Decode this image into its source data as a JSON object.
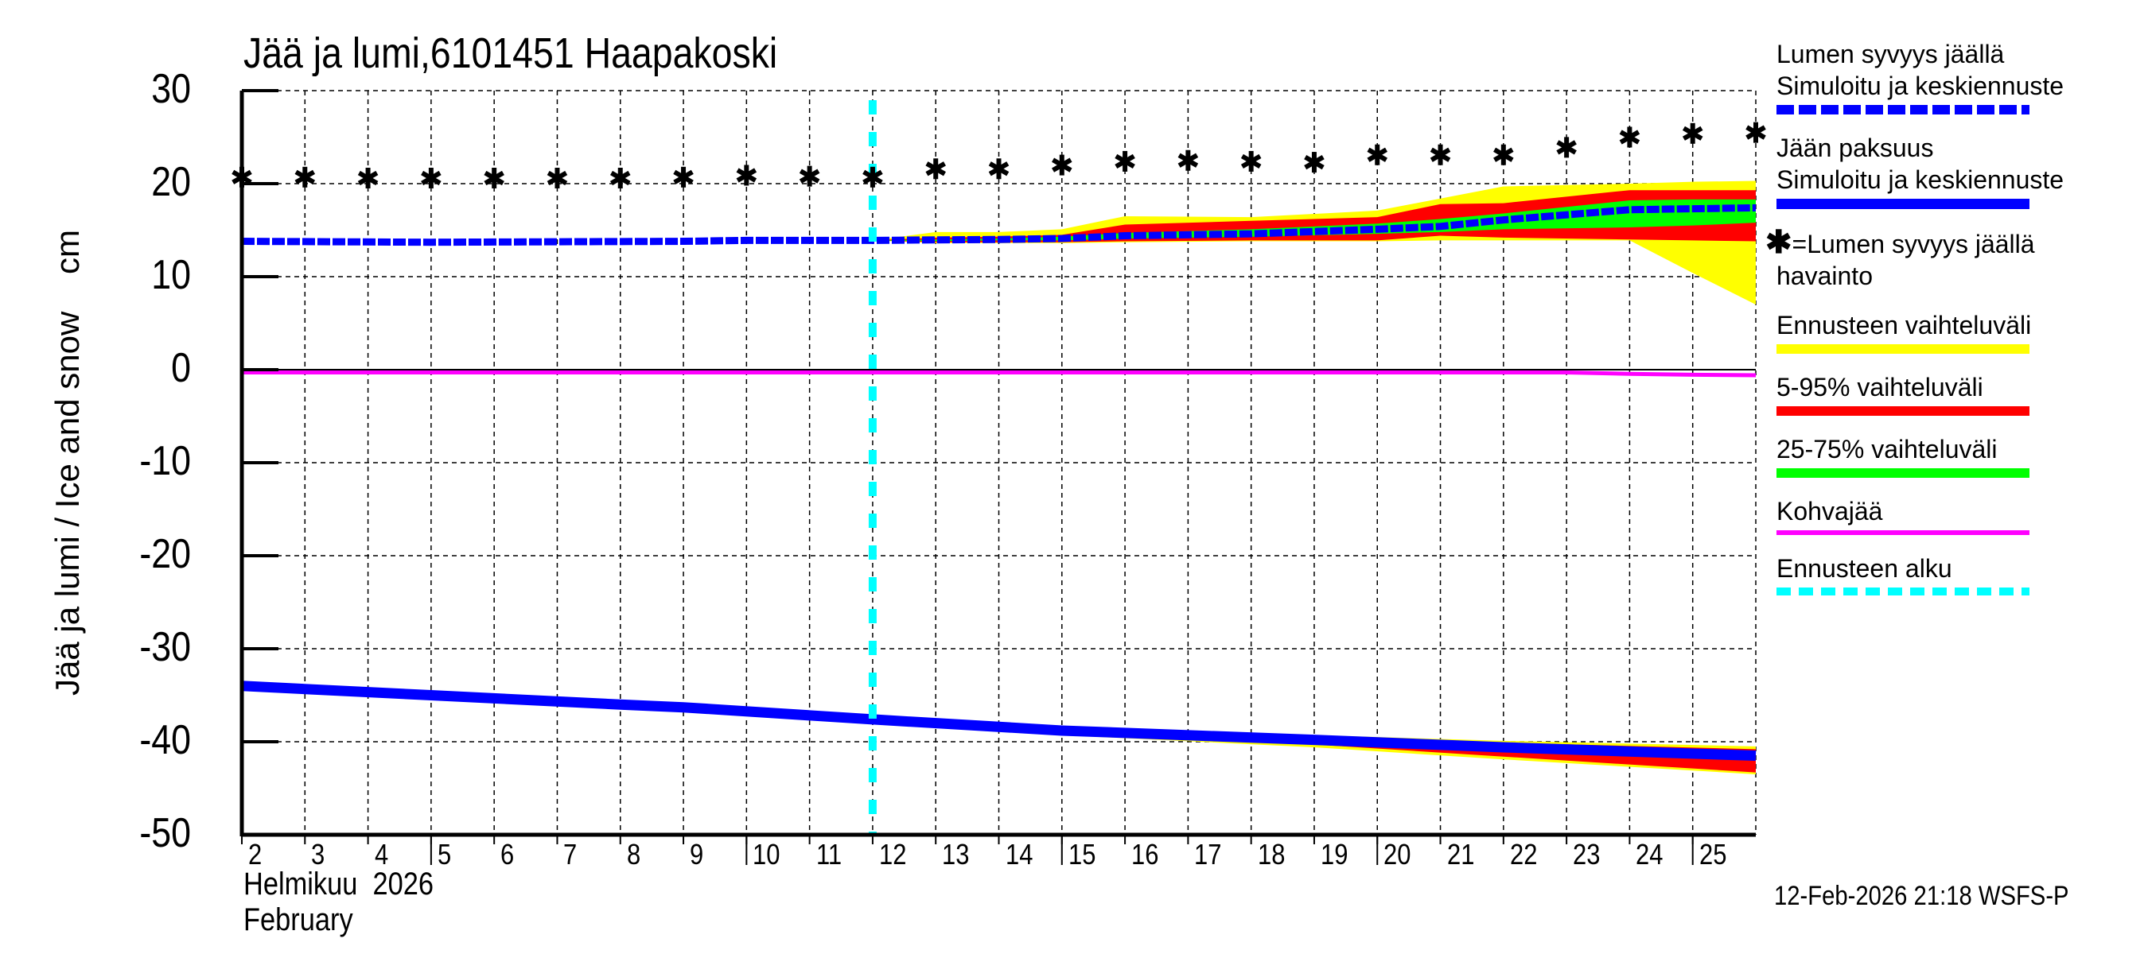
{
  "title": "Jää ja lumi,6101451 Haapakoski",
  "y_axis_label": "Jää ja lumi / Ice and snow    cm",
  "x_axis": {
    "month_fi": "Helmikuu  2026",
    "month_en": "February"
  },
  "footer": "12-Feb-2026 21:18 WSFS-P",
  "legend": {
    "snow_sim_title": "Lumen syvyys jäällä",
    "snow_sim_sub": "Simuloitu ja keskiennuste",
    "ice_title": "Jään paksuus",
    "ice_sub": "Simuloitu ja keskiennuste",
    "snow_obs_title": "=Lumen syvyys jäällä",
    "snow_obs_sub": "havainto",
    "range_all": "Ennusteen vaihteluväli",
    "range_5_95": "5-95% vaihteluväli",
    "range_25_75": "25-75% vaihteluväli",
    "slush_ice": "Kohvajää",
    "forecast_start": "Ennusteen alku"
  },
  "colors": {
    "snow_line": "#0000ff",
    "ice_line": "#0000ff",
    "range_all": "#ffff00",
    "range_5_95": "#ff0000",
    "range_25_75": "#00ff00",
    "slush_ice": "#ff00ff",
    "forecast_start": "#00ffff",
    "observation": "#000000"
  },
  "chart_data": {
    "type": "line",
    "title": "Jää ja lumi,6101451 Haapakoski",
    "xlabel": "Helmikuu 2026 / February",
    "ylabel": "Jää ja lumi / Ice and snow cm",
    "ylim": [
      -50,
      30
    ],
    "xlim": [
      2,
      26
    ],
    "yticks": [
      30,
      20,
      10,
      0,
      -10,
      -20,
      -30,
      -40,
      -50
    ],
    "xticks": [
      2,
      3,
      4,
      5,
      6,
      7,
      8,
      9,
      10,
      11,
      12,
      13,
      14,
      15,
      16,
      17,
      18,
      19,
      20,
      21,
      22,
      23,
      24,
      25
    ],
    "grid": true,
    "legend_position": "right",
    "forecast_start_day": 12,
    "snow_observed": {
      "name": "Lumen syvyys jäällä havainto",
      "x": [
        2,
        3,
        4,
        5,
        6,
        7,
        8,
        9,
        10,
        11,
        12,
        13,
        14,
        15,
        16,
        17,
        18,
        19,
        20,
        21,
        22,
        23,
        24,
        25,
        26
      ],
      "y": [
        20.7,
        20.7,
        20.6,
        20.6,
        20.6,
        20.6,
        20.6,
        20.7,
        20.9,
        20.8,
        20.7,
        21.6,
        21.6,
        22.0,
        22.4,
        22.5,
        22.4,
        22.3,
        23.1,
        23.1,
        23.1,
        23.9,
        25.0,
        25.4,
        25.5
      ]
    },
    "snow_simulated": {
      "name": "Lumen syvyys jäällä simuloitu ja keskiennuste",
      "x": [
        2,
        5,
        9,
        10,
        12,
        14,
        15,
        16,
        18,
        20,
        21,
        22,
        24,
        26
      ],
      "y": [
        13.8,
        13.7,
        13.8,
        13.9,
        13.9,
        14.0,
        14.1,
        14.4,
        14.6,
        15.1,
        15.4,
        16.1,
        17.2,
        17.4
      ]
    },
    "snow_bands": {
      "x": [
        12,
        13,
        14,
        15,
        16,
        18,
        20,
        21,
        22,
        24,
        25,
        26
      ],
      "yellow_top": [
        13.9,
        14.8,
        14.8,
        15.1,
        16.5,
        16.4,
        17.1,
        18.4,
        19.7,
        20.0,
        20.2,
        20.3
      ],
      "red_top": [
        13.9,
        14.2,
        14.3,
        14.5,
        15.6,
        16.0,
        16.4,
        17.8,
        17.9,
        19.3,
        19.3,
        19.3
      ],
      "green_top": [
        13.9,
        14.0,
        14.1,
        14.3,
        14.7,
        15.1,
        15.7,
        16.2,
        16.8,
        18.2,
        18.3,
        18.3
      ],
      "green_bottom": [
        13.9,
        13.8,
        13.9,
        13.9,
        14.1,
        14.3,
        14.6,
        14.8,
        15.1,
        15.3,
        15.5,
        15.8
      ],
      "red_bottom": [
        13.9,
        13.7,
        13.7,
        13.7,
        13.8,
        13.9,
        13.9,
        14.4,
        14.2,
        14.0,
        13.9,
        13.8
      ],
      "yellow_bottom": [
        13.9,
        13.6,
        13.6,
        13.6,
        13.7,
        13.8,
        13.8,
        13.9,
        13.9,
        13.9,
        10.4,
        7.0
      ]
    },
    "ice_thickness": {
      "name": "Jään paksuus simuloitu ja keskiennuste",
      "x": [
        2,
        5,
        8,
        9,
        12,
        15,
        19,
        22,
        26
      ],
      "y": [
        -34.0,
        -35.0,
        -36.0,
        -36.3,
        -37.6,
        -38.8,
        -39.8,
        -40.6,
        -41.5
      ]
    },
    "ice_bands": {
      "x": [
        12,
        15,
        19,
        22,
        26
      ],
      "yellow_top": [
        -37.6,
        -38.5,
        -39.3,
        -39.9,
        -40.5
      ],
      "red_top": [
        -37.6,
        -38.6,
        -39.5,
        -40.1,
        -40.8
      ],
      "red_bottom": [
        -37.6,
        -39.1,
        -40.3,
        -41.6,
        -43.3
      ],
      "yellow_bottom": [
        -37.6,
        -39.3,
        -40.6,
        -41.9,
        -43.5
      ]
    },
    "slush_ice": {
      "name": "Kohvajää",
      "x": [
        2,
        23,
        24,
        25,
        26
      ],
      "y": [
        -0.3,
        -0.3,
        -0.45,
        -0.55,
        -0.6
      ]
    }
  }
}
